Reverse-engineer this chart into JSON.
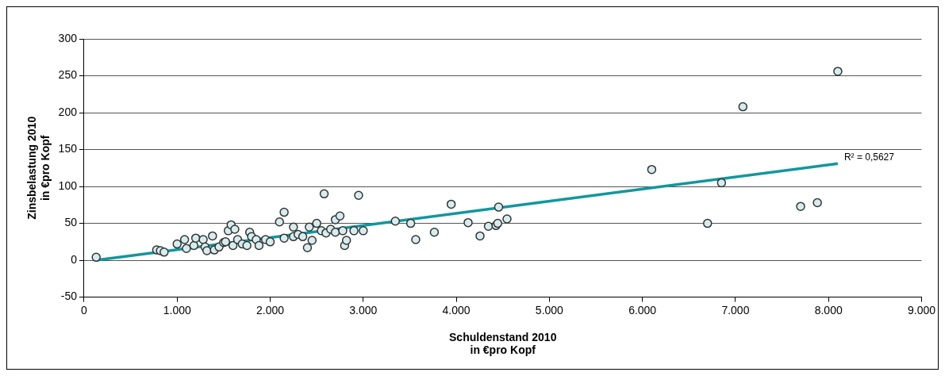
{
  "chart_data": {
    "type": "scatter",
    "xlabel": "Schuldenstand 2010\nin €pro Kopf",
    "ylabel": "Zinsbelastung 2010\nin €pro Kopf",
    "xlim": [
      0,
      9000
    ],
    "xticks": [
      {
        "value": 0,
        "label": "0"
      },
      {
        "value": 1000,
        "label": "1.000"
      },
      {
        "value": 2000,
        "label": "2.000"
      },
      {
        "value": 3000,
        "label": "3.000"
      },
      {
        "value": 4000,
        "label": "4.000"
      },
      {
        "value": 5000,
        "label": "5.000"
      },
      {
        "value": 6000,
        "label": "6.000"
      },
      {
        "value": 7000,
        "label": "7.000"
      },
      {
        "value": 8000,
        "label": "8.000"
      },
      {
        "value": 9000,
        "label": "9.000"
      }
    ],
    "ylim": [
      -50,
      300
    ],
    "yticks": [
      -50,
      0,
      50,
      100,
      150,
      200,
      250,
      300
    ],
    "grid": "y",
    "legend": false,
    "series": [
      {
        "type": "scatter",
        "marker": "circle",
        "color": "#d6ecee",
        "x": [
          130,
          780,
          820,
          860,
          1000,
          1080,
          1100,
          1180,
          1200,
          1280,
          1300,
          1320,
          1380,
          1400,
          1450,
          1500,
          1520,
          1550,
          1580,
          1600,
          1620,
          1650,
          1700,
          1750,
          1780,
          1800,
          1850,
          1880,
          1950,
          2000,
          2100,
          2150,
          2150,
          2250,
          2250,
          2300,
          2350,
          2400,
          2420,
          2450,
          2500,
          2550,
          2580,
          2600,
          2650,
          2700,
          2700,
          2750,
          2780,
          2800,
          2820,
          2900,
          2950,
          3000,
          3345,
          3510,
          3564,
          3764,
          3945,
          4127,
          4255,
          4345,
          4427,
          4445,
          4455,
          4545,
          6100,
          6700,
          6850,
          7080,
          7700,
          7880,
          8100
        ],
        "values": [
          4,
          14,
          13,
          11,
          22,
          28,
          16,
          20,
          30,
          28,
          18,
          13,
          33,
          14,
          18,
          24,
          25,
          40,
          48,
          20,
          42,
          28,
          22,
          20,
          38,
          32,
          28,
          20,
          28,
          25,
          52,
          65,
          30,
          45,
          32,
          35,
          32,
          17,
          45,
          27,
          50,
          40,
          90,
          37,
          42,
          55,
          38,
          60,
          40,
          20,
          27,
          40,
          88,
          40,
          53,
          50,
          28,
          38,
          76,
          51,
          33,
          46,
          47,
          50,
          72,
          56,
          123,
          50,
          105,
          208,
          73,
          78,
          256
        ]
      },
      {
        "type": "line",
        "marker": "none",
        "color": "#12979c",
        "x": [
          130,
          8100
        ],
        "values": [
          0,
          131
        ]
      }
    ],
    "annotations": [
      {
        "text": "R² = 0,5627",
        "x": 8100,
        "y": 131
      }
    ]
  }
}
